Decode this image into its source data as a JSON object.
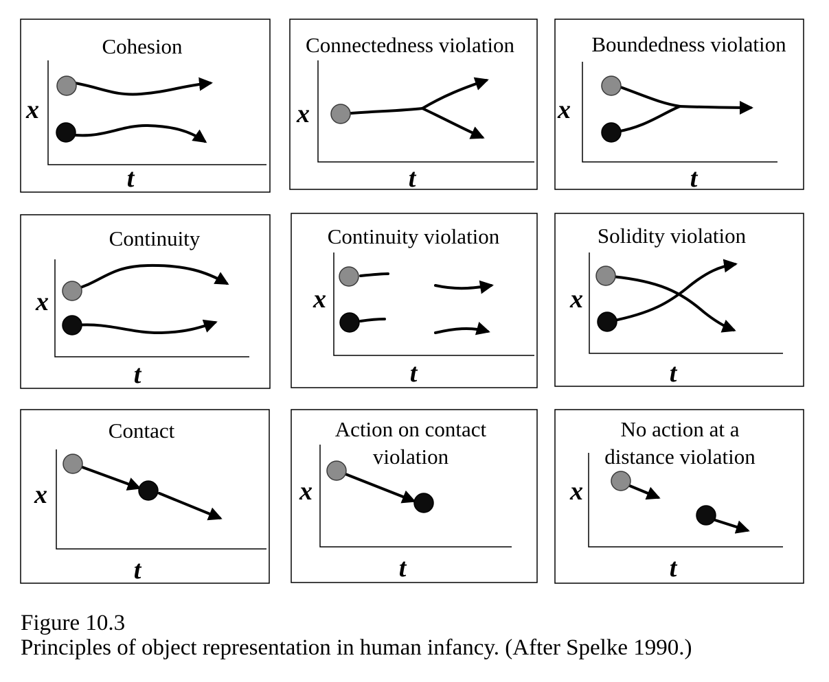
{
  "figure": {
    "caption_label": "Figure 10.3",
    "caption_text": "Principles of object representation in human infancy. (After Spelke 1990.)",
    "object_colors": {
      "grey": "#8c8c8c",
      "black": "#0d0d0d"
    }
  },
  "panels": [
    {
      "id": "cohesion",
      "title": [
        "Cohesion"
      ],
      "x_label": "x",
      "t_label": "t"
    },
    {
      "id": "connectedness-violation",
      "title": [
        "Connectedness violation"
      ],
      "x_label": "x",
      "t_label": "t"
    },
    {
      "id": "boundedness-violation",
      "title": [
        "Boundedness violation"
      ],
      "x_label": "x",
      "t_label": "t"
    },
    {
      "id": "continuity",
      "title": [
        "Continuity"
      ],
      "x_label": "x",
      "t_label": "t"
    },
    {
      "id": "continuity-violation",
      "title": [
        "Continuity violation"
      ],
      "x_label": "x",
      "t_label": "t"
    },
    {
      "id": "solidity-violation",
      "title": [
        "Solidity violation"
      ],
      "x_label": "x",
      "t_label": "t"
    },
    {
      "id": "contact",
      "title": [
        "Contact"
      ],
      "x_label": "x",
      "t_label": "t"
    },
    {
      "id": "action-on-contact-violation",
      "title": [
        "Action on contact",
        "violation"
      ],
      "x_label": "x",
      "t_label": "t"
    },
    {
      "id": "no-action-at-a-distance-violation",
      "title": [
        "No action at a",
        "distance violation"
      ],
      "x_label": "x",
      "t_label": "t"
    }
  ]
}
